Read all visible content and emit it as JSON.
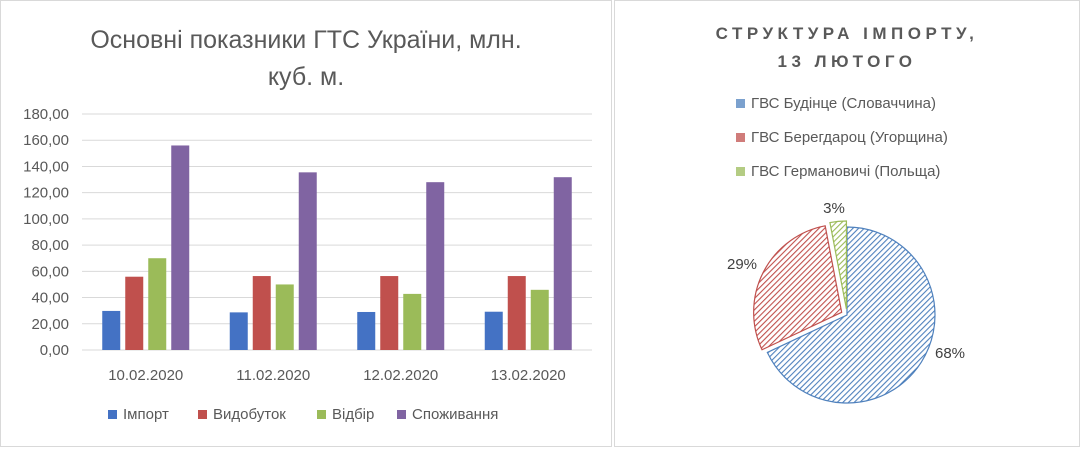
{
  "bar_title_line1": "Основні показники ГТС України, млн.",
  "bar_title_line2": "куб. м.",
  "pie_title_line1": "СТРУКТУРА ІМПОРТУ,",
  "pie_title_line2": "13 ЛЮТОГО",
  "chart_data": [
    {
      "type": "bar",
      "title": "Основні показники ГТС України, млн. куб. м.",
      "categories": [
        "10.02.2020",
        "11.02.2020",
        "12.02.2020",
        "13.02.2020"
      ],
      "series": [
        {
          "name": "Імпорт",
          "color": "#4472c4",
          "values": [
            29.8,
            28.7,
            29.0,
            29.2
          ]
        },
        {
          "name": "Видобуток",
          "color": "#c0504d",
          "values": [
            55.9,
            56.4,
            56.4,
            56.4
          ]
        },
        {
          "name": "Відбір",
          "color": "#9bbb59",
          "values": [
            70.0,
            50.0,
            42.8,
            45.9
          ]
        },
        {
          "name": "Споживання",
          "color": "#8064a2",
          "values": [
            156.0,
            135.5,
            128.0,
            131.8
          ]
        }
      ],
      "yticks": [
        "0,00",
        "20,00",
        "40,00",
        "60,00",
        "80,00",
        "100,00",
        "120,00",
        "140,00",
        "160,00",
        "180,00"
      ],
      "ylim": [
        0,
        180
      ],
      "grid": true,
      "legend": "bottom"
    },
    {
      "type": "pie",
      "title": "СТРУКТУРА ІМПОРТУ, 13 ЛЮТОГО",
      "slices": [
        {
          "name": "ГВС Будінце (Словаччина)",
          "value": 68,
          "label": "68%",
          "color": "#4f81bd"
        },
        {
          "name": "ГВС Берегдароц (Угорщина)",
          "value": 29,
          "label": "29%",
          "color": "#c0504d"
        },
        {
          "name": "ГВС Германовичі (Польща)",
          "value": 3,
          "label": "3%",
          "color": "#9bbb59"
        }
      ],
      "legend": "top"
    }
  ]
}
